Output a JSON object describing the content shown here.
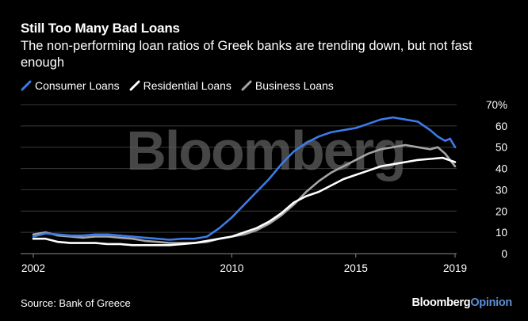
{
  "header": {
    "title": "Still Too Many Bad Loans",
    "subtitle": "The non-performing loan ratios of Greek banks are trending down, but not fast enough"
  },
  "footer": {
    "source": "Source: Bank of Greece",
    "brand_main": "Bloomberg",
    "brand_accent": "Opinion"
  },
  "watermark": "Bloomberg",
  "colors": {
    "background": "#000000",
    "consumer": "#3d7be8",
    "residential": "#ffffff",
    "business": "#a6a6a6",
    "brand_accent": "#5a8fd6"
  },
  "chart_data": {
    "type": "line",
    "title": "Still Too Many Bad Loans",
    "subtitle": "The non-performing loan ratios of Greek banks are trending down, but not fast enough",
    "xlabel": "",
    "ylabel": "",
    "xlim": [
      2002,
      2019
    ],
    "ylim": [
      0,
      70
    ],
    "y_unit_suffix": "%",
    "x_ticks": [
      2002,
      2010,
      2015,
      2019
    ],
    "y_ticks": [
      0,
      10,
      20,
      30,
      40,
      50,
      60,
      70
    ],
    "y_tick_labels": [
      "0",
      "10",
      "20",
      "30",
      "40",
      "50",
      "60",
      "70%"
    ],
    "grid": true,
    "legend_position": "top-left",
    "series": [
      {
        "name": "Consumer Loans",
        "color": "#3d7be8",
        "points": [
          [
            2002.0,
            8
          ],
          [
            2002.5,
            9.5
          ],
          [
            2003.0,
            9
          ],
          [
            2003.5,
            8.5
          ],
          [
            2004.0,
            8.5
          ],
          [
            2004.5,
            9
          ],
          [
            2005.0,
            9
          ],
          [
            2005.5,
            8.5
          ],
          [
            2006.0,
            8
          ],
          [
            2006.5,
            7.5
          ],
          [
            2007.0,
            7
          ],
          [
            2007.5,
            6.5
          ],
          [
            2008.0,
            7
          ],
          [
            2008.5,
            7
          ],
          [
            2009.0,
            8
          ],
          [
            2009.5,
            12
          ],
          [
            2010.0,
            17
          ],
          [
            2010.5,
            23
          ],
          [
            2011.0,
            29
          ],
          [
            2011.5,
            35
          ],
          [
            2012.0,
            42
          ],
          [
            2012.5,
            48
          ],
          [
            2013.0,
            52
          ],
          [
            2013.5,
            55
          ],
          [
            2014.0,
            57
          ],
          [
            2014.5,
            58
          ],
          [
            2015.0,
            59
          ],
          [
            2015.5,
            61
          ],
          [
            2016.0,
            63
          ],
          [
            2016.5,
            64
          ],
          [
            2017.0,
            63
          ],
          [
            2017.5,
            62
          ],
          [
            2018.0,
            58
          ],
          [
            2018.3,
            55
          ],
          [
            2018.6,
            53
          ],
          [
            2018.8,
            54
          ],
          [
            2019.0,
            50
          ]
        ]
      },
      {
        "name": "Residential Loans",
        "color": "#ffffff",
        "points": [
          [
            2002.0,
            7
          ],
          [
            2002.5,
            7
          ],
          [
            2003.0,
            5.5
          ],
          [
            2003.5,
            5
          ],
          [
            2004.0,
            5
          ],
          [
            2004.5,
            5
          ],
          [
            2005.0,
            4.5
          ],
          [
            2005.5,
            4.5
          ],
          [
            2006.0,
            4
          ],
          [
            2006.5,
            4
          ],
          [
            2007.0,
            4
          ],
          [
            2007.5,
            4
          ],
          [
            2008.0,
            4.5
          ],
          [
            2008.5,
            5
          ],
          [
            2009.0,
            6
          ],
          [
            2009.5,
            7
          ],
          [
            2010.0,
            8
          ],
          [
            2010.5,
            10
          ],
          [
            2011.0,
            12
          ],
          [
            2011.5,
            15
          ],
          [
            2012.0,
            19
          ],
          [
            2012.5,
            24
          ],
          [
            2013.0,
            27
          ],
          [
            2013.5,
            29
          ],
          [
            2014.0,
            32
          ],
          [
            2014.5,
            35
          ],
          [
            2015.0,
            37
          ],
          [
            2015.5,
            39
          ],
          [
            2016.0,
            41
          ],
          [
            2016.5,
            42
          ],
          [
            2017.0,
            43
          ],
          [
            2017.5,
            44
          ],
          [
            2018.0,
            44.5
          ],
          [
            2018.5,
            45
          ],
          [
            2019.0,
            43
          ]
        ]
      },
      {
        "name": "Business Loans",
        "color": "#a6a6a6",
        "points": [
          [
            2002.0,
            9
          ],
          [
            2002.5,
            10
          ],
          [
            2003.0,
            8.5
          ],
          [
            2003.5,
            8
          ],
          [
            2004.0,
            7.5
          ],
          [
            2004.5,
            8
          ],
          [
            2005.0,
            8
          ],
          [
            2005.5,
            7.5
          ],
          [
            2006.0,
            7
          ],
          [
            2006.5,
            6
          ],
          [
            2007.0,
            5.5
          ],
          [
            2007.5,
            5
          ],
          [
            2008.0,
            5
          ],
          [
            2008.5,
            5
          ],
          [
            2009.0,
            5.5
          ],
          [
            2009.5,
            7
          ],
          [
            2010.0,
            8
          ],
          [
            2010.5,
            9
          ],
          [
            2011.0,
            11
          ],
          [
            2011.5,
            14
          ],
          [
            2012.0,
            18
          ],
          [
            2012.5,
            23
          ],
          [
            2013.0,
            29
          ],
          [
            2013.5,
            34
          ],
          [
            2014.0,
            38
          ],
          [
            2014.5,
            41
          ],
          [
            2015.0,
            44
          ],
          [
            2015.5,
            47
          ],
          [
            2016.0,
            49
          ],
          [
            2016.5,
            50
          ],
          [
            2017.0,
            51
          ],
          [
            2017.5,
            50
          ],
          [
            2018.0,
            49
          ],
          [
            2018.3,
            50
          ],
          [
            2018.6,
            47
          ],
          [
            2018.8,
            44
          ],
          [
            2019.0,
            41
          ]
        ]
      }
    ]
  }
}
